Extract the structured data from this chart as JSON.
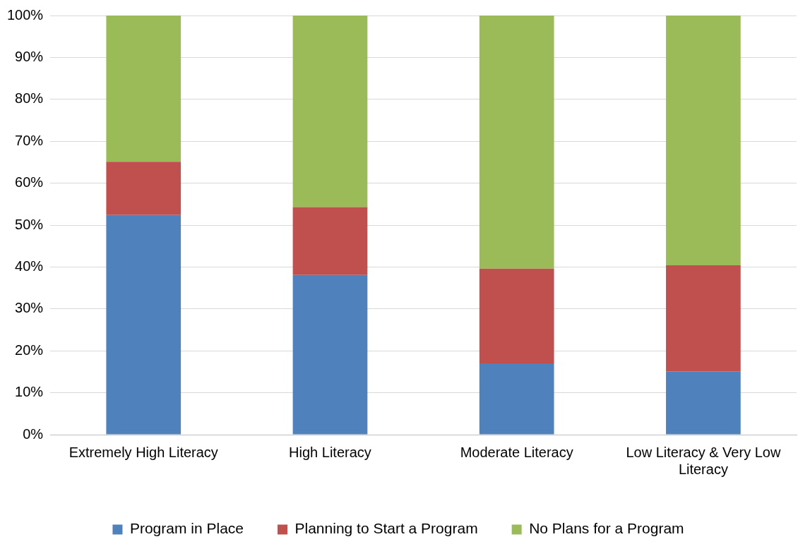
{
  "chart_data": {
    "type": "bar",
    "stacked": true,
    "categories": [
      "Extremely High Literacy",
      "High Literacy",
      "Moderate Literacy",
      "Low Literacy & Very Low Literacy"
    ],
    "series": [
      {
        "name": "Program in Place",
        "color": "#4f81bd",
        "values": [
          52.4,
          38.1,
          17.0,
          15.1
        ]
      },
      {
        "name": "Planning to Start a Program",
        "color": "#c0504d",
        "values": [
          12.7,
          16.2,
          22.6,
          25.3
        ]
      },
      {
        "name": "No Plans for a Program",
        "color": "#9bbb59",
        "values": [
          34.9,
          45.7,
          60.4,
          59.6
        ]
      }
    ],
    "ylim": [
      0,
      100
    ],
    "yticks": [
      {
        "value": 0,
        "label": "0%"
      },
      {
        "value": 10,
        "label": "10%"
      },
      {
        "value": 20,
        "label": "20%"
      },
      {
        "value": 30,
        "label": "30%"
      },
      {
        "value": 40,
        "label": "40%"
      },
      {
        "value": 50,
        "label": "50%"
      },
      {
        "value": 60,
        "label": "60%"
      },
      {
        "value": 70,
        "label": "70%"
      },
      {
        "value": 80,
        "label": "80%"
      },
      {
        "value": 90,
        "label": "90%"
      },
      {
        "value": 100,
        "label": "100%"
      }
    ],
    "grid": "y",
    "legend": "bottom"
  }
}
